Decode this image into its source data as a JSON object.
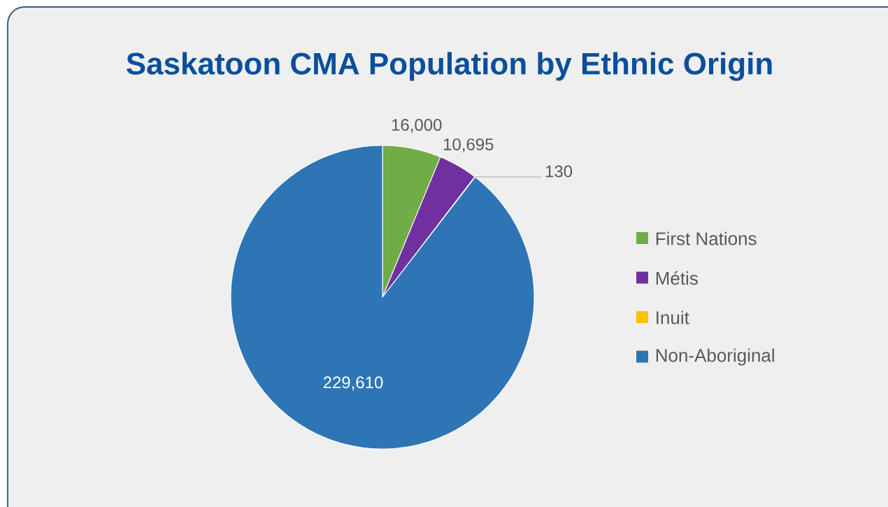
{
  "chart_data": {
    "type": "pie",
    "title": "Saskatoon CMA Population by Ethnic Origin",
    "categories": [
      "First Nations",
      "Métis",
      "Inuit",
      "Non-Aboriginal"
    ],
    "values": [
      16000,
      10695,
      130,
      229610
    ],
    "colors": [
      "#70ad47",
      "#7030a0",
      "#ffc000",
      "#2e75b6"
    ],
    "value_labels": [
      "16,000",
      "10,695",
      "130",
      "229,610"
    ],
    "legend": "right"
  }
}
